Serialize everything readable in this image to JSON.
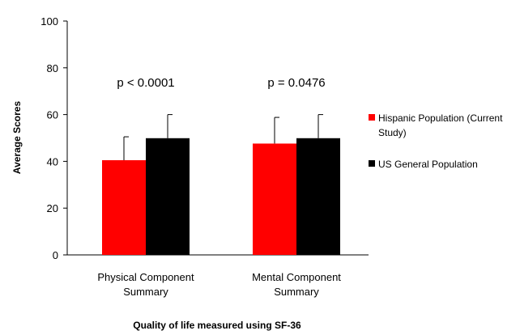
{
  "chart_data": {
    "type": "bar",
    "xlabel": "Quality of life measured using SF-36",
    "ylabel": "Average Scores",
    "ylim": [
      0,
      100
    ],
    "yticks": [
      "0",
      "20",
      "40",
      "60",
      "80",
      "100"
    ],
    "grid": false,
    "legend_position": "right",
    "categories": [
      [
        "Physical Component",
        "Summary"
      ],
      [
        "Mental Component",
        "Summary"
      ]
    ],
    "series": [
      {
        "name": [
          "Hispanic Population (Current",
          "Study)"
        ],
        "color": "#ff0000",
        "values": [
          40.5,
          47.6
        ],
        "error": [
          10.0,
          11.2
        ]
      },
      {
        "name": [
          "US General Population"
        ],
        "color": "#000000",
        "values": [
          49.9,
          49.9
        ],
        "error": [
          10.1,
          10.1
        ]
      }
    ],
    "annotations": [
      "p < 0.0001",
      "p = 0.0476"
    ]
  }
}
